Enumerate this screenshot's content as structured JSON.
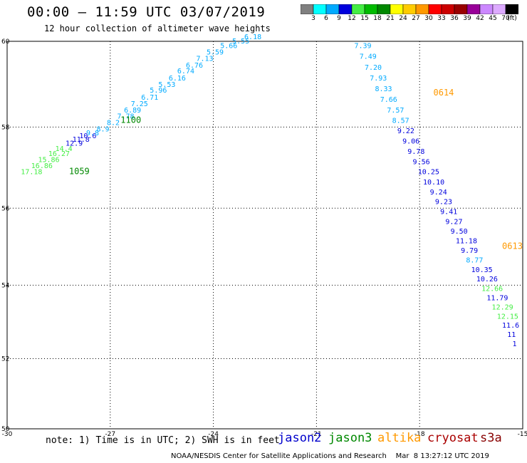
{
  "header": {
    "title": "00:00 – 11:59 UTC 03/07/2019",
    "subtitle": "12 hour collection of altimeter wave heights"
  },
  "colorbar": {
    "colors": [
      "#808080",
      "#00ffff",
      "#00aaff",
      "#0000dd",
      "#44ee44",
      "#00bb00",
      "#008800",
      "#ffff00",
      "#ffcc00",
      "#ff9900",
      "#ff0000",
      "#cc0000",
      "#990000",
      "#990099",
      "#cc88ff",
      "#ddaaff",
      "#000000"
    ],
    "labels": [
      "3",
      "6",
      "9",
      "12",
      "15",
      "18",
      "21",
      "24",
      "27",
      "30",
      "33",
      "36",
      "39",
      "42",
      "45",
      "70",
      "(ft)"
    ]
  },
  "map": {
    "lon_ticks": [
      "-30",
      "-27",
      "-24",
      "-21",
      "-18",
      "-15"
    ],
    "lat_ticks": [
      "60",
      "58",
      "56",
      "54",
      "52",
      "50"
    ],
    "lon_range": [
      -30,
      -15
    ],
    "lat_range": [
      50,
      60
    ],
    "grid": "dotted"
  },
  "tracks": [
    {
      "satellite": "jason3",
      "time_labels": [
        {
          "text": "1059",
          "lon": -28.2,
          "lat": 56.85,
          "color": "#008800"
        },
        {
          "text": "1100",
          "lon": -26.7,
          "lat": 58.1,
          "color": "#008800"
        }
      ],
      "points": [
        {
          "v": "17.18",
          "lon": -29.6,
          "lat": 56.85,
          "color": "#44ee44"
        },
        {
          "v": "16.86",
          "lon": -29.3,
          "lat": 57.0,
          "color": "#44ee44"
        },
        {
          "v": "15.86",
          "lon": -29.1,
          "lat": 57.15,
          "color": "#44ee44"
        },
        {
          "v": "16.27",
          "lon": -28.8,
          "lat": 57.3,
          "color": "#44ee44"
        },
        {
          "v": "14.4",
          "lon": -28.6,
          "lat": 57.42,
          "color": "#44ee44"
        },
        {
          "v": "12.9",
          "lon": -28.3,
          "lat": 57.55,
          "color": "#0000dd"
        },
        {
          "v": "11.8",
          "lon": -28.1,
          "lat": 57.65,
          "color": "#0000dd"
        },
        {
          "v": "10.6",
          "lon": -27.9,
          "lat": 57.73,
          "color": "#0000dd"
        },
        {
          "v": "9.8",
          "lon": -27.7,
          "lat": 57.8,
          "color": "#00aaff"
        },
        {
          "v": "8.9",
          "lon": -27.4,
          "lat": 57.9,
          "color": "#00aaff"
        },
        {
          "v": "8.2",
          "lon": -27.1,
          "lat": 58.05,
          "color": "#00aaff"
        },
        {
          "v": "7.78",
          "lon": -26.8,
          "lat": 58.2,
          "color": "#00aaff"
        },
        {
          "v": "6.89",
          "lon": -26.6,
          "lat": 58.35,
          "color": "#00aaff"
        },
        {
          "v": "7.25",
          "lon": -26.4,
          "lat": 58.5,
          "color": "#00aaff"
        },
        {
          "v": "6.71",
          "lon": -26.1,
          "lat": 58.65,
          "color": "#00aaff"
        },
        {
          "v": "5.96",
          "lon": -25.85,
          "lat": 58.82,
          "color": "#00aaff"
        },
        {
          "v": "5.53",
          "lon": -25.6,
          "lat": 58.95,
          "color": "#00aaff"
        },
        {
          "v": "6.16",
          "lon": -25.3,
          "lat": 59.1,
          "color": "#00aaff"
        },
        {
          "v": "6.74",
          "lon": -25.05,
          "lat": 59.27,
          "color": "#00aaff"
        },
        {
          "v": "6.76",
          "lon": -24.8,
          "lat": 59.4,
          "color": "#00aaff"
        },
        {
          "v": "7.13",
          "lon": -24.5,
          "lat": 59.55,
          "color": "#00aaff"
        },
        {
          "v": "5.59",
          "lon": -24.2,
          "lat": 59.7,
          "color": "#00aaff"
        },
        {
          "v": "5.66",
          "lon": -23.8,
          "lat": 59.85,
          "color": "#00aaff"
        },
        {
          "v": "5.55",
          "lon": -23.45,
          "lat": 59.95,
          "color": "#00aaff"
        },
        {
          "v": "6.18",
          "lon": -23.1,
          "lat": 60.05,
          "color": "#00aaff"
        }
      ]
    },
    {
      "satellite": "altika",
      "time_labels": [
        {
          "text": "0614",
          "lon": -17.6,
          "lat": 58.75,
          "color": "#ff9900"
        },
        {
          "text": "0613",
          "lon": -15.6,
          "lat": 54.95,
          "color": "#ff9900"
        }
      ],
      "points": [
        {
          "v": "7.39",
          "lon": -19.9,
          "lat": 59.85,
          "color": "#00aaff"
        },
        {
          "v": "7.49",
          "lon": -19.75,
          "lat": 59.6,
          "color": "#00aaff"
        },
        {
          "v": "7.20",
          "lon": -19.6,
          "lat": 59.35,
          "color": "#00aaff"
        },
        {
          "v": "7.93",
          "lon": -19.45,
          "lat": 59.1,
          "color": "#00aaff"
        },
        {
          "v": "8.33",
          "lon": -19.3,
          "lat": 58.85,
          "color": "#00aaff"
        },
        {
          "v": "7.66",
          "lon": -19.15,
          "lat": 58.6,
          "color": "#00aaff"
        },
        {
          "v": "7.57",
          "lon": -18.95,
          "lat": 58.35,
          "color": "#00aaff"
        },
        {
          "v": "8.57",
          "lon": -18.8,
          "lat": 58.1,
          "color": "#00aaff"
        },
        {
          "v": "9.22",
          "lon": -18.65,
          "lat": 57.85,
          "color": "#0000dd"
        },
        {
          "v": "9.06",
          "lon": -18.5,
          "lat": 57.6,
          "color": "#0000dd"
        },
        {
          "v": "9.78",
          "lon": -18.35,
          "lat": 57.35,
          "color": "#0000dd"
        },
        {
          "v": "9.56",
          "lon": -18.2,
          "lat": 57.1,
          "color": "#0000dd"
        },
        {
          "v": "10.25",
          "lon": -18.05,
          "lat": 56.85,
          "color": "#0000dd"
        },
        {
          "v": "10.10",
          "lon": -17.9,
          "lat": 56.6,
          "color": "#0000dd"
        },
        {
          "v": "9.24",
          "lon": -17.7,
          "lat": 56.35,
          "color": "#0000dd"
        },
        {
          "v": "9.23",
          "lon": -17.55,
          "lat": 56.1,
          "color": "#0000dd"
        },
        {
          "v": "9.41",
          "lon": -17.4,
          "lat": 55.85,
          "color": "#0000dd"
        },
        {
          "v": "9.27",
          "lon": -17.25,
          "lat": 55.6,
          "color": "#0000dd"
        },
        {
          "v": "9.50",
          "lon": -17.1,
          "lat": 55.35,
          "color": "#0000dd"
        },
        {
          "v": "11.18",
          "lon": -16.95,
          "lat": 55.1,
          "color": "#0000dd"
        },
        {
          "v": "9.79",
          "lon": -16.8,
          "lat": 54.85,
          "color": "#0000dd"
        },
        {
          "v": "8.77",
          "lon": -16.65,
          "lat": 54.6,
          "color": "#00aaff"
        },
        {
          "v": "10.35",
          "lon": -16.5,
          "lat": 54.35,
          "color": "#0000dd"
        },
        {
          "v": "10.26",
          "lon": -16.35,
          "lat": 54.1,
          "color": "#0000dd"
        },
        {
          "v": "12.66",
          "lon": -16.2,
          "lat": 53.85,
          "color": "#44ee44"
        },
        {
          "v": "11.79",
          "lon": -16.05,
          "lat": 53.6,
          "color": "#0000dd"
        },
        {
          "v": "12.29",
          "lon": -15.9,
          "lat": 53.35,
          "color": "#44ee44"
        },
        {
          "v": "12.15",
          "lon": -15.75,
          "lat": 53.1,
          "color": "#44ee44"
        },
        {
          "v": "11.6",
          "lon": -15.6,
          "lat": 52.85,
          "color": "#0000dd"
        },
        {
          "v": "11",
          "lon": -15.45,
          "lat": 52.6,
          "color": "#0000dd"
        },
        {
          "v": "1",
          "lon": -15.3,
          "lat": 52.35,
          "color": "#0000dd"
        }
      ]
    }
  ],
  "footer": {
    "note": "note: 1) Time is in UTC; 2) SWH is in feet",
    "satellites": [
      {
        "name": "jason2",
        "color": "#0000cc"
      },
      {
        "name": "jason3",
        "color": "#008800"
      },
      {
        "name": "altika",
        "color": "#ff9900"
      },
      {
        "name": "cryosat",
        "color": "#aa0000"
      },
      {
        "name": "s3a",
        "color": "#880000"
      }
    ],
    "credit": "NOAA/NESDIS Center for Satellite Applications and Research    Mar  8 13:27:12 UTC 2019"
  }
}
